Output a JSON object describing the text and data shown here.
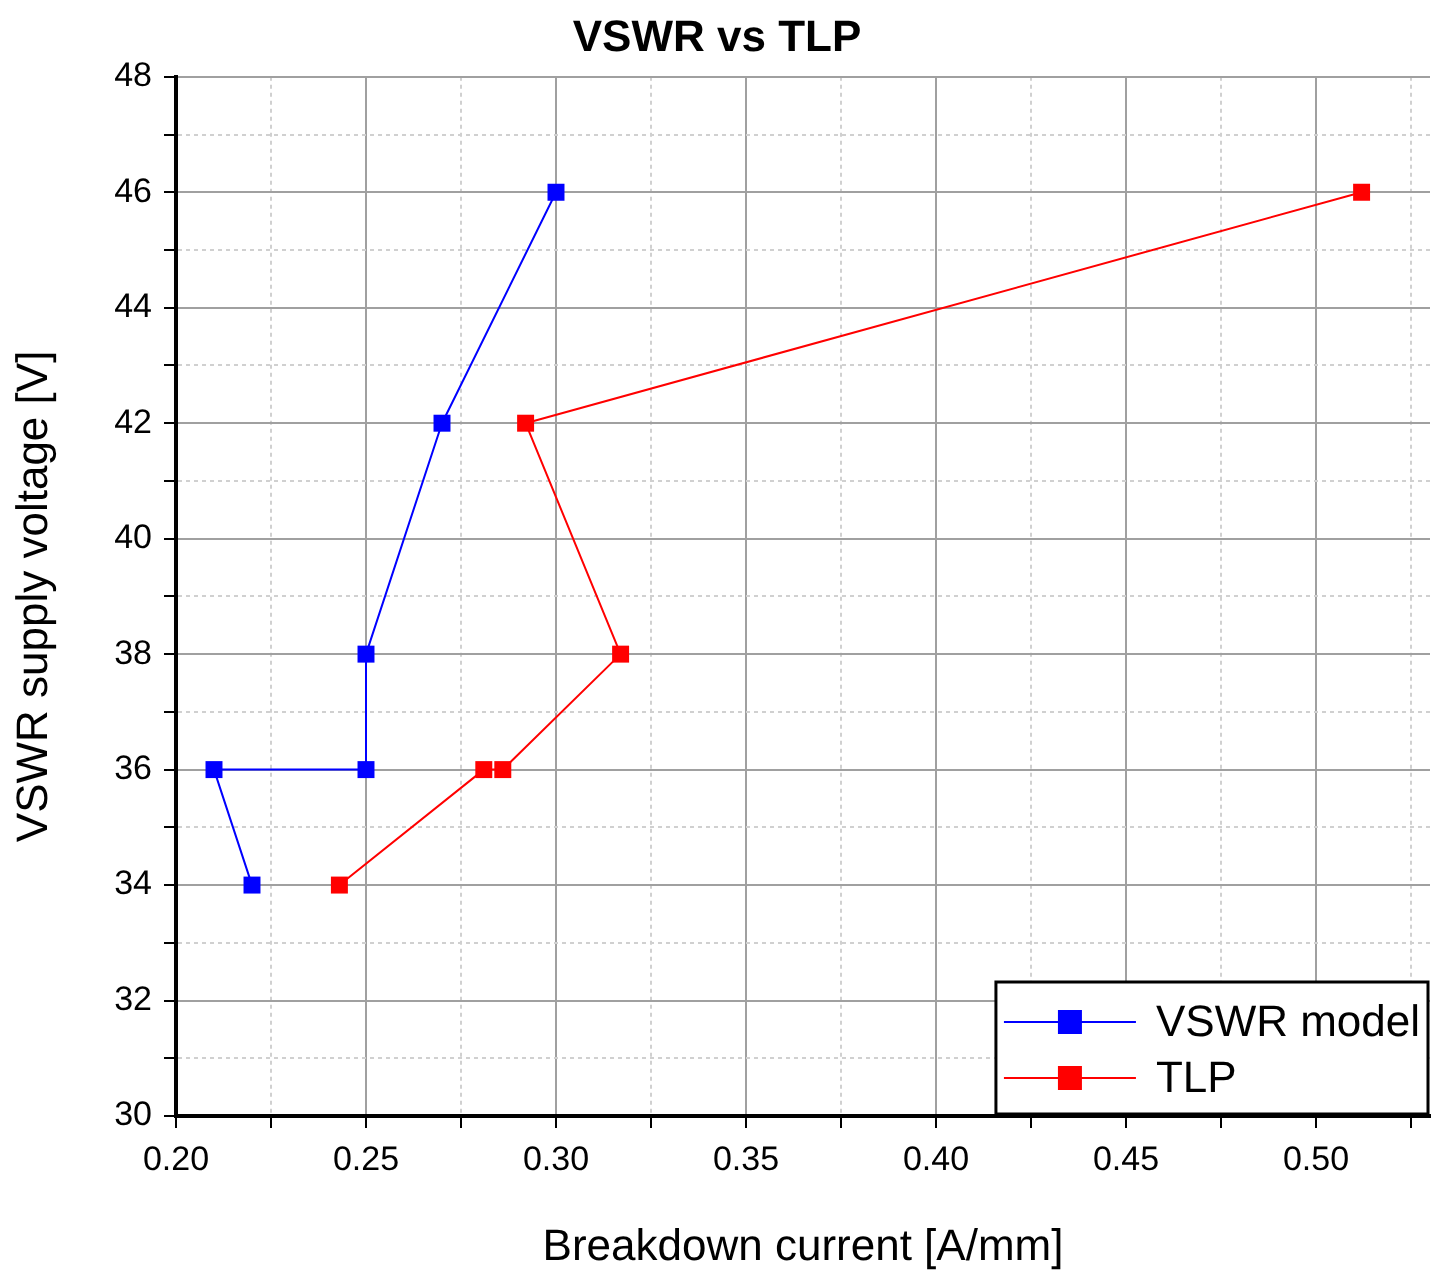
{
  "chart_data": {
    "type": "line",
    "title": "VSWR vs TLP",
    "xlabel": "Breakdown current [A/mm]",
    "ylabel": "VSWR supply voltage [V]",
    "series": [
      {
        "name": "VSWR model",
        "color": "#0000ff",
        "x": [
          0.3,
          0.27,
          0.25,
          0.25,
          0.21,
          0.22
        ],
        "values": [
          46,
          42,
          38,
          36,
          36,
          34
        ]
      },
      {
        "name": "TLP",
        "color": "#ff0000",
        "x": [
          0.512,
          0.292,
          0.317,
          0.286,
          0.281,
          0.243
        ],
        "values": [
          46,
          42,
          38,
          36,
          36,
          34
        ]
      }
    ],
    "xlim": [
      0.2,
      0.53
    ],
    "xticks": [
      {
        "value": 0.2,
        "label": "0.20"
      },
      {
        "value": 0.225,
        "label": null
      },
      {
        "value": 0.25,
        "label": "0.25"
      },
      {
        "value": 0.275,
        "label": null
      },
      {
        "value": 0.3,
        "label": "0.30"
      },
      {
        "value": 0.325,
        "label": null
      },
      {
        "value": 0.35,
        "label": "0.35"
      },
      {
        "value": 0.375,
        "label": null
      },
      {
        "value": 0.4,
        "label": "0.40"
      },
      {
        "value": 0.425,
        "label": null
      },
      {
        "value": 0.45,
        "label": "0.45"
      },
      {
        "value": 0.475,
        "label": null
      },
      {
        "value": 0.5,
        "label": "0.50"
      },
      {
        "value": 0.525,
        "label": null
      }
    ],
    "ylim": [
      30,
      48
    ],
    "yticks": [
      30,
      {
        "value": 31,
        "label": null
      },
      32,
      {
        "value": 33,
        "label": null
      },
      34,
      {
        "value": 35,
        "label": null
      },
      36,
      {
        "value": 37,
        "label": null
      },
      38,
      {
        "value": 39,
        "label": null
      },
      40,
      {
        "value": 41,
        "label": null
      },
      42,
      {
        "value": 43,
        "label": null
      },
      44,
      {
        "value": 45,
        "label": null
      },
      46,
      {
        "value": 47,
        "label": null
      },
      48
    ],
    "grid": true,
    "legend": "bottom right",
    "marker": "square",
    "line_style": "solid"
  }
}
